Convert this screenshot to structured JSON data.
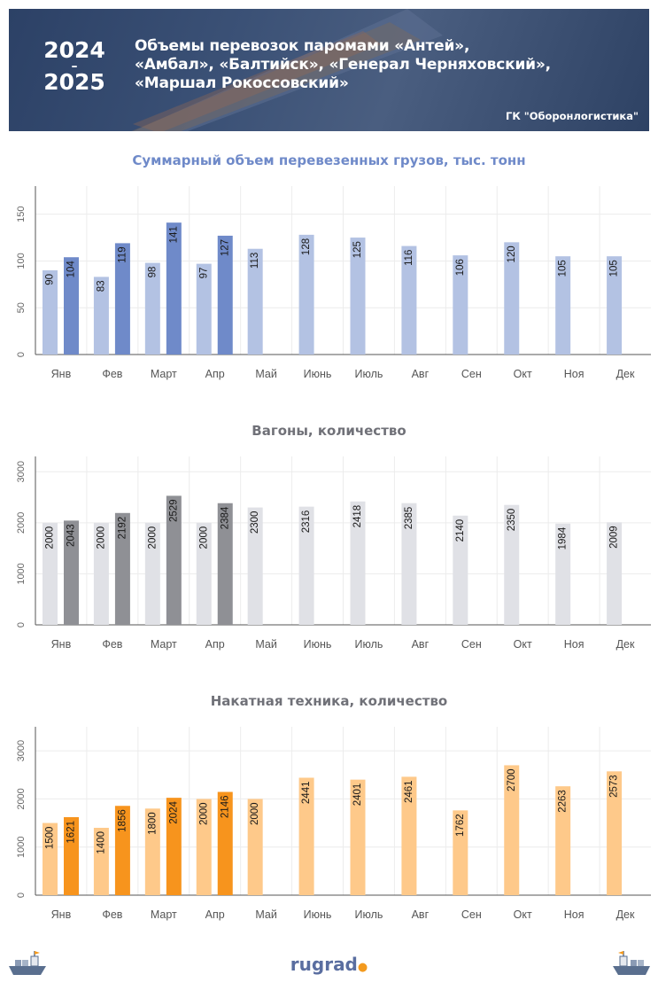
{
  "header": {
    "year_top": "2024",
    "year_dash": "–",
    "year_bottom": "2025",
    "title": "Объемы перевозок паромами «Антей», «Амбал», «Балтийск», «Генерал Черняховский», «Маршал Рокоссовский»",
    "company": "ГК \"Оборонлогистика\""
  },
  "footer": {
    "logo_text": "rugrad",
    "logo_dot": "●"
  },
  "colors": {
    "cargo_2024": "#b3c2e3",
    "cargo_2025": "#6f8ac9",
    "cargo_title": "#6f8ac9",
    "wagons_2024": "#e0e1e6",
    "wagons_2025": "#8f9095",
    "wagons_title": "#707178",
    "vehicles_2024": "#fec98a",
    "vehicles_2025": "#f7941d",
    "vehicles_title": "#707178"
  },
  "chart_data": [
    {
      "type": "bar",
      "title": "Суммарный объем перевезенных грузов, тыс. тонн",
      "categories": [
        "Янв",
        "Фев",
        "Март",
        "Апр",
        "Май",
        "Июнь",
        "Июль",
        "Авг",
        "Сен",
        "Окт",
        "Ноя",
        "Дек"
      ],
      "series": [
        {
          "values": [
            90,
            83,
            98,
            97,
            113,
            128,
            125,
            116,
            106,
            120,
            105,
            105
          ]
        },
        {
          "values": [
            104,
            119,
            141,
            127,
            null,
            null,
            null,
            null,
            null,
            null,
            null,
            null
          ]
        }
      ],
      "ylim": [
        0,
        180
      ],
      "yticks": [
        0,
        50,
        100,
        150
      ],
      "grid": true
    },
    {
      "type": "bar",
      "title": "Вагоны, количество",
      "categories": [
        "Янв",
        "Фев",
        "Март",
        "Апр",
        "Май",
        "Июнь",
        "Июль",
        "Авг",
        "Сен",
        "Окт",
        "Ноя",
        "Дек"
      ],
      "series": [
        {
          "values": [
            2000,
            2000,
            2000,
            2000,
            2300,
            2316,
            2418,
            2385,
            2140,
            2350,
            1984,
            2009
          ]
        },
        {
          "values": [
            2043,
            2192,
            2529,
            2384,
            null,
            null,
            null,
            null,
            null,
            null,
            null,
            null
          ]
        }
      ],
      "ylim": [
        0,
        3300
      ],
      "yticks": [
        0,
        1000,
        2000,
        3000
      ],
      "grid": true
    },
    {
      "type": "bar",
      "title": "Накатная техника, количество",
      "categories": [
        "Янв",
        "Фев",
        "Март",
        "Апр",
        "Май",
        "Июнь",
        "Июль",
        "Авг",
        "Сен",
        "Окт",
        "Ноя",
        "Дек"
      ],
      "series": [
        {
          "values": [
            1500,
            1400,
            1800,
            2000,
            2000,
            2441,
            2401,
            2461,
            1762,
            2700,
            2263,
            2573
          ]
        },
        {
          "values": [
            1621,
            1856,
            2024,
            2146,
            null,
            null,
            null,
            null,
            null,
            null,
            null,
            null
          ]
        }
      ],
      "ylim": [
        0,
        3500
      ],
      "yticks": [
        0,
        1000,
        2000,
        3000
      ],
      "grid": true
    }
  ]
}
